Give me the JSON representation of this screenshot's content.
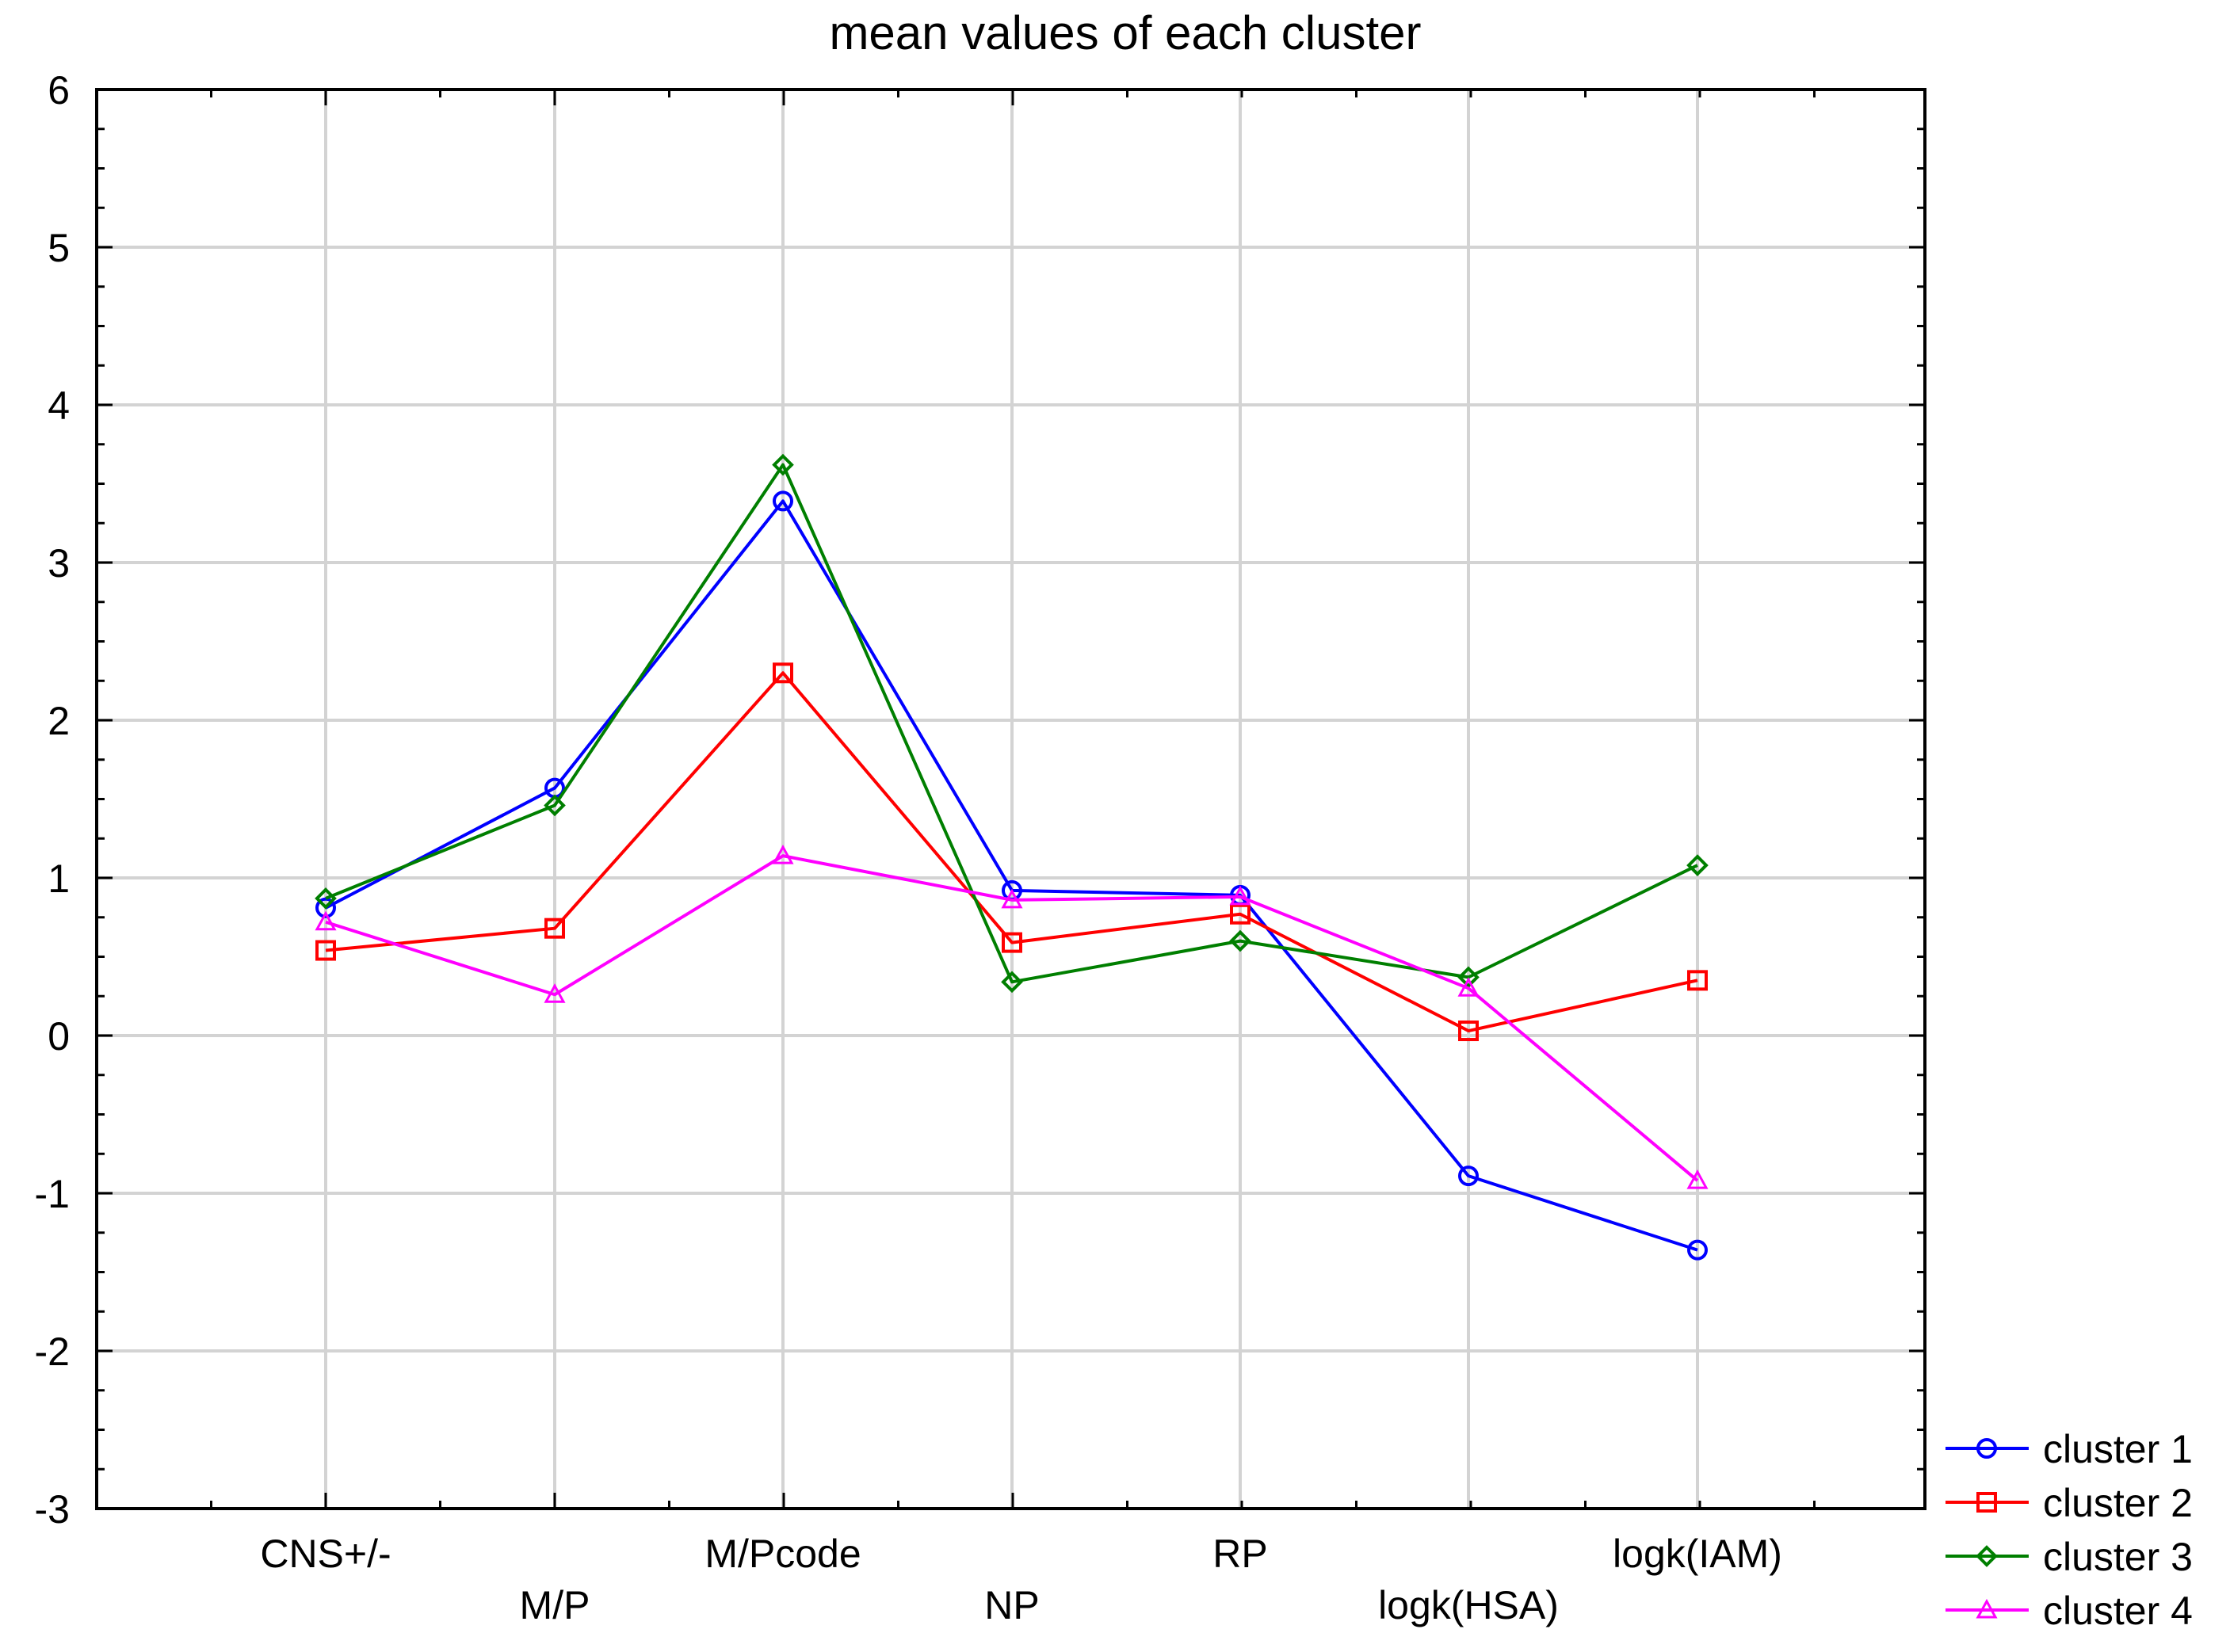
{
  "chart_data": {
    "type": "line",
    "title": "mean values of each cluster",
    "xlabel": "",
    "ylabel": "",
    "ylim": [
      -3,
      6
    ],
    "yticks": [
      -3,
      -2,
      -1,
      0,
      1,
      2,
      3,
      4,
      5,
      6
    ],
    "grid": true,
    "legend_position": "bottom-right, outside plot",
    "categories": [
      "CNS+/-",
      "M/P",
      "M/Pcode",
      "NP",
      "RP",
      "logk(HSA)",
      "logk(IAM)"
    ],
    "series": [
      {
        "name": "cluster 1",
        "color": "#0000ff",
        "marker": "circle",
        "values": [
          0.81,
          1.57,
          3.39,
          0.92,
          0.89,
          -0.89,
          -1.36
        ]
      },
      {
        "name": "cluster 2",
        "color": "#ff0000",
        "marker": "square",
        "values": [
          0.54,
          0.68,
          2.3,
          0.59,
          0.77,
          0.03,
          0.35
        ]
      },
      {
        "name": "cluster 3",
        "color": "#007f00",
        "marker": "diamond",
        "values": [
          0.87,
          1.46,
          3.62,
          0.34,
          0.6,
          0.37,
          1.08
        ]
      },
      {
        "name": "cluster 4",
        "color": "#ff00ff",
        "marker": "triangle",
        "values": [
          0.72,
          0.26,
          1.14,
          0.86,
          0.88,
          0.3,
          -0.92
        ]
      }
    ]
  }
}
